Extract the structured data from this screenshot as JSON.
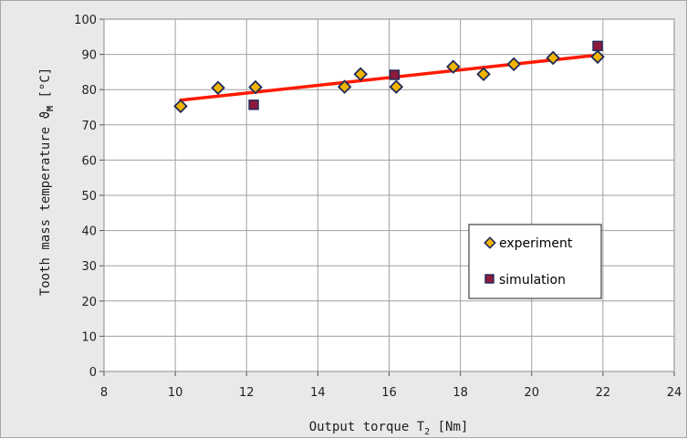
{
  "chart_data": {
    "type": "scatter",
    "xlabel": "Output torque T",
    "xlabel_sub": "2",
    "xlabel_unit": " [Nm]",
    "ylabel": "Tooth mass temperature ϑ",
    "ylabel_sub": "M",
    "ylabel_unit": "  [°C]",
    "xlim": [
      8,
      24
    ],
    "ylim": [
      0,
      100
    ],
    "xticks": [
      8,
      10,
      12,
      14,
      16,
      18,
      20,
      22,
      24
    ],
    "yticks": [
      0,
      10,
      20,
      30,
      40,
      50,
      60,
      70,
      80,
      90,
      100
    ],
    "grid": true,
    "legend_position": "right-center",
    "series": [
      {
        "name": "experiment",
        "marker": "diamond",
        "color": "#f2b400",
        "edge_color": "#1f2a5a",
        "x": [
          10.15,
          11.2,
          12.25,
          14.75,
          15.2,
          16.2,
          17.8,
          18.65,
          19.5,
          20.6,
          21.85
        ],
        "y": [
          75.3,
          80.5,
          80.7,
          80.8,
          84.4,
          80.8,
          86.5,
          84.4,
          87.2,
          89.0,
          89.3
        ]
      },
      {
        "name": "simulation",
        "marker": "square",
        "color": "#8b1a3c",
        "edge_color": "#1f2a5a",
        "x": [
          12.2,
          16.15,
          21.85
        ],
        "y": [
          75.7,
          84.2,
          92.4
        ]
      }
    ],
    "trendline": {
      "color": "#ff1a00",
      "x": [
        10.15,
        21.85
      ],
      "y": [
        77.0,
        89.8
      ]
    }
  }
}
